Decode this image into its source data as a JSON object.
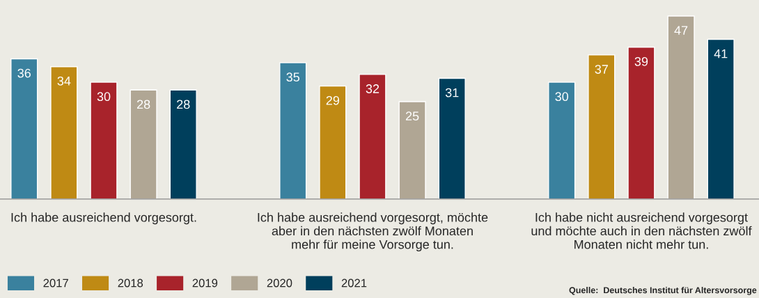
{
  "chart_data": {
    "type": "bar",
    "categories": [
      "Ich habe ausreichend vorgesorgt.",
      "Ich habe ausreichend vorgesorgt, möchte\naber in den nächsten zwölf Monaten\nmehr für meine Vorsorge tun.",
      "Ich habe nicht ausreichend vorgesorgt\nund möchte auch in den nächsten zwölf\nMonaten nicht mehr tun."
    ],
    "series": [
      {
        "name": "2017",
        "color": "#3a819e",
        "values": [
          36,
          35,
          30
        ]
      },
      {
        "name": "2018",
        "color": "#bf8a14",
        "values": [
          34,
          29,
          37
        ]
      },
      {
        "name": "2019",
        "color": "#a8232b",
        "values": [
          30,
          32,
          39
        ]
      },
      {
        "name": "2020",
        "color": "#b0a694",
        "values": [
          28,
          25,
          47
        ]
      },
      {
        "name": "2021",
        "color": "#003f5c",
        "values": [
          28,
          31,
          41
        ]
      }
    ],
    "data_labels": true,
    "legend": "bottom left",
    "grid": false,
    "tick_labels": "x",
    "annotations": [
      "Quelle:  Deutsches Institut für Altersvorsorge"
    ]
  }
}
